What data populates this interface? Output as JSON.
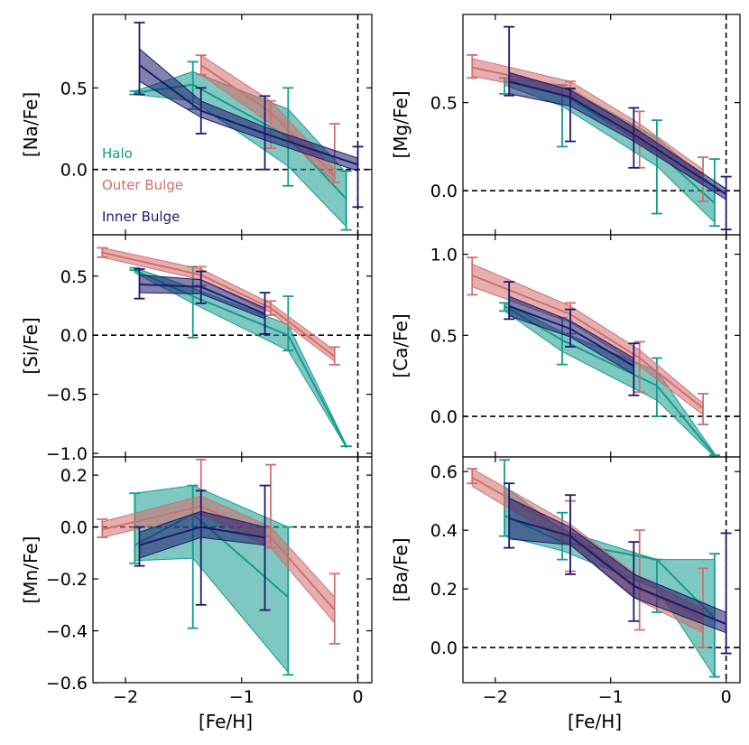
{
  "chart_data": {
    "type": "line",
    "figure_xlabel": "[Fe/H]",
    "colors": {
      "Halo": "#159b8e",
      "Outer Bulge": "#d16e6e",
      "Inner Bulge": "#1b1b6e"
    },
    "legend": [
      {
        "name": "Halo",
        "color": "#159b8e"
      },
      {
        "name": "Outer Bulge",
        "color": "#d16e6e"
      },
      {
        "name": "Inner Bulge",
        "color": "#1b1b6e"
      }
    ],
    "xlim": [
      -2.28,
      0.12
    ],
    "xticks": [
      -2,
      -1,
      0
    ],
    "xtick_labels": [
      "−2",
      "−1",
      "0"
    ],
    "panels": [
      {
        "id": "na",
        "ylabel": "[Na/Fe]",
        "ylim": [
          -0.4,
          0.95
        ],
        "yticks": [
          0.0,
          0.5
        ],
        "ytick_labels": [
          "0.0",
          "0.5"
        ],
        "show_legend": true,
        "show_xticklabels": false,
        "series": [
          {
            "name": "Halo",
            "x": [
              -1.92,
              -1.42,
              -0.6,
              -0.1
            ],
            "y": [
              0.47,
              0.52,
              0.2,
              -0.18
            ],
            "lo": [
              0.46,
              0.42,
              0.02,
              -0.35
            ],
            "hi": [
              0.48,
              0.6,
              0.37,
              -0.02
            ],
            "err_lo": [
              0.46,
              0.37,
              -0.1,
              -0.37
            ],
            "err_hi": [
              0.48,
              0.66,
              0.5,
              -0.01
            ]
          },
          {
            "name": "Outer Bulge",
            "x": [
              -1.35,
              -0.75,
              -0.2
            ],
            "y": [
              0.64,
              0.35,
              -0.04
            ],
            "lo": [
              0.58,
              0.28,
              -0.08
            ],
            "hi": [
              0.7,
              0.42,
              0.0
            ],
            "err_lo": [
              0.58,
              0.13,
              -0.08
            ],
            "err_hi": [
              0.7,
              0.42,
              0.28
            ]
          },
          {
            "name": "Inner Bulge",
            "x": [
              -1.88,
              -1.35,
              -0.8,
              0.0
            ],
            "y": [
              0.64,
              0.36,
              0.22,
              0.03
            ],
            "lo": [
              0.54,
              0.32,
              0.18,
              -0.01
            ],
            "hi": [
              0.74,
              0.42,
              0.26,
              0.07
            ],
            "err_lo": [
              0.46,
              0.22,
              0.0,
              -0.23
            ],
            "err_hi": [
              0.9,
              0.5,
              0.45,
              0.14
            ]
          }
        ]
      },
      {
        "id": "mg",
        "ylabel": "[Mg/Fe]",
        "ylim": [
          -0.25,
          1.0
        ],
        "yticks": [
          0.0,
          0.5
        ],
        "ytick_labels": [
          "0.0",
          "0.5"
        ],
        "show_legend": false,
        "show_xticklabels": false,
        "series": [
          {
            "name": "Halo",
            "x": [
              -1.92,
              -1.42,
              -0.6,
              -0.1
            ],
            "y": [
              0.62,
              0.55,
              0.22,
              -0.07
            ],
            "lo": [
              0.6,
              0.48,
              0.14,
              -0.18
            ],
            "hi": [
              0.64,
              0.6,
              0.3,
              0.02
            ],
            "err_lo": [
              0.55,
              0.25,
              -0.13,
              -0.2
            ],
            "err_hi": [
              0.64,
              0.6,
              0.4,
              0.18
            ]
          },
          {
            "name": "Outer Bulge",
            "x": [
              -2.2,
              -1.35,
              -0.75,
              -0.2
            ],
            "y": [
              0.7,
              0.58,
              0.33,
              0.09
            ],
            "lo": [
              0.65,
              0.54,
              0.27,
              0.04
            ],
            "hi": [
              0.75,
              0.62,
              0.38,
              0.12
            ],
            "err_lo": [
              0.64,
              0.53,
              0.13,
              -0.06
            ],
            "err_hi": [
              0.77,
              0.62,
              0.45,
              0.19
            ]
          },
          {
            "name": "Inner Bulge",
            "x": [
              -1.88,
              -1.35,
              -0.8,
              0.0
            ],
            "y": [
              0.62,
              0.53,
              0.32,
              -0.02
            ],
            "lo": [
              0.55,
              0.48,
              0.28,
              -0.05
            ],
            "hi": [
              0.67,
              0.57,
              0.36,
              0.01
            ],
            "err_lo": [
              0.54,
              0.28,
              0.13,
              -0.22
            ],
            "err_hi": [
              0.93,
              0.58,
              0.47,
              0.08
            ]
          }
        ]
      },
      {
        "id": "si",
        "ylabel": "[Si/Fe]",
        "ylim": [
          -1.03,
          0.85
        ],
        "yticks": [
          -1.0,
          -0.5,
          0.0,
          0.5
        ],
        "ytick_labels": [
          "−1.0",
          "−0.5",
          "0.0",
          "0.5"
        ],
        "show_legend": false,
        "show_xticklabels": false,
        "series": [
          {
            "name": "Halo",
            "x": [
              -1.92,
              -1.42,
              -0.6,
              -0.1
            ],
            "y": [
              0.55,
              0.33,
              0.0,
              -0.94
            ],
            "lo": [
              0.53,
              0.27,
              -0.13,
              -0.95
            ],
            "hi": [
              0.57,
              0.4,
              0.09,
              -0.93
            ],
            "err_lo": [
              0.55,
              -0.02,
              -0.13,
              -0.94
            ],
            "err_hi": [
              0.57,
              0.58,
              0.33,
              -0.94
            ]
          },
          {
            "name": "Outer Bulge",
            "x": [
              -2.2,
              -1.35,
              -0.75,
              -0.2
            ],
            "y": [
              0.7,
              0.51,
              0.23,
              -0.18
            ],
            "lo": [
              0.66,
              0.47,
              0.19,
              -0.22
            ],
            "hi": [
              0.74,
              0.56,
              0.27,
              -0.13
            ],
            "err_lo": [
              0.66,
              0.42,
              0.17,
              -0.25
            ],
            "err_hi": [
              0.74,
              0.58,
              0.29,
              -0.1
            ]
          },
          {
            "name": "Inner Bulge",
            "x": [
              -1.88,
              -1.35,
              -0.8
            ],
            "y": [
              0.43,
              0.41,
              0.18
            ],
            "lo": [
              0.36,
              0.35,
              0.14
            ],
            "hi": [
              0.51,
              0.47,
              0.23
            ],
            "err_lo": [
              0.31,
              0.27,
              0.01
            ],
            "err_hi": [
              0.56,
              0.54,
              0.36
            ]
          }
        ]
      },
      {
        "id": "ca",
        "ylabel": "[Ca/Fe]",
        "ylim": [
          -0.25,
          1.12
        ],
        "yticks": [
          0.0,
          0.5,
          1.0
        ],
        "ytick_labels": [
          "0.0",
          "0.5",
          "1.0"
        ],
        "show_legend": false,
        "show_xticklabels": false,
        "series": [
          {
            "name": "Halo",
            "x": [
              -1.92,
              -1.42,
              -0.6,
              -0.1
            ],
            "y": [
              0.68,
              0.47,
              0.19,
              -0.24
            ],
            "lo": [
              0.65,
              0.4,
              0.1,
              -0.25
            ],
            "hi": [
              0.7,
              0.52,
              0.28,
              -0.23
            ],
            "err_lo": [
              0.65,
              0.32,
              0.0,
              -0.24
            ],
            "err_hi": [
              0.7,
              0.61,
              0.36,
              -0.24
            ]
          },
          {
            "name": "Outer Bulge",
            "x": [
              -2.2,
              -1.35,
              -0.75,
              -0.2
            ],
            "y": [
              0.87,
              0.63,
              0.36,
              0.05
            ],
            "lo": [
              0.8,
              0.58,
              0.31,
              0.01
            ],
            "hi": [
              0.94,
              0.68,
              0.41,
              0.08
            ],
            "err_lo": [
              0.75,
              0.51,
              0.15,
              -0.05
            ],
            "err_hi": [
              0.98,
              0.7,
              0.46,
              0.14
            ]
          },
          {
            "name": "Inner Bulge",
            "x": [
              -1.88,
              -1.35,
              -0.8
            ],
            "y": [
              0.68,
              0.54,
              0.31
            ],
            "lo": [
              0.62,
              0.49,
              0.26
            ],
            "hi": [
              0.74,
              0.59,
              0.36
            ],
            "err_lo": [
              0.6,
              0.43,
              0.13
            ],
            "err_hi": [
              0.83,
              0.66,
              0.45
            ]
          }
        ]
      },
      {
        "id": "mn",
        "ylabel": "[Mn/Fe]",
        "ylim": [
          -0.6,
          0.27
        ],
        "yticks": [
          -0.6,
          -0.4,
          -0.2,
          0.0,
          0.2
        ],
        "ytick_labels": [
          "−0.6",
          "−0.4",
          "−0.2",
          "0.0",
          "0.2"
        ],
        "show_legend": false,
        "show_xticklabels": true,
        "series": [
          {
            "name": "Halo",
            "x": [
              -1.92,
              -1.42,
              -0.6
            ],
            "y": [
              -0.07,
              0.05,
              -0.27
            ],
            "lo": [
              -0.13,
              -0.12,
              -0.56
            ],
            "hi": [
              0.13,
              0.16,
              0.0
            ],
            "err_lo": [
              -0.14,
              -0.39,
              -0.57
            ],
            "err_hi": [
              0.13,
              0.16,
              0.0
            ]
          },
          {
            "name": "Outer Bulge",
            "x": [
              -2.2,
              -1.35,
              -0.75,
              -0.2
            ],
            "y": [
              -0.01,
              0.08,
              -0.04,
              -0.32
            ],
            "lo": [
              -0.04,
              0.05,
              -0.08,
              -0.37
            ],
            "hi": [
              0.02,
              0.12,
              0.0,
              -0.27
            ],
            "err_lo": [
              -0.04,
              0.05,
              -0.08,
              -0.45
            ],
            "err_hi": [
              0.03,
              0.26,
              0.24,
              -0.18
            ]
          },
          {
            "name": "Inner Bulge",
            "x": [
              -1.88,
              -1.35,
              -0.8
            ],
            "y": [
              -0.07,
              0.0,
              -0.04
            ],
            "lo": [
              -0.12,
              -0.04,
              -0.07
            ],
            "hi": [
              -0.02,
              0.06,
              0.0
            ],
            "err_lo": [
              -0.15,
              -0.3,
              -0.32
            ],
            "err_hi": [
              0.0,
              0.14,
              0.16
            ]
          }
        ]
      },
      {
        "id": "ba",
        "ylabel": "[Ba/Fe]",
        "ylim": [
          -0.12,
          0.65
        ],
        "yticks": [
          0.0,
          0.2,
          0.4,
          0.6
        ],
        "ytick_labels": [
          "0.0",
          "0.2",
          "0.4",
          "0.6"
        ],
        "show_legend": false,
        "show_xticklabels": true,
        "series": [
          {
            "name": "Halo",
            "x": [
              -1.92,
              -1.42,
              -0.6,
              -0.1
            ],
            "y": [
              0.45,
              0.36,
              0.3,
              0.1
            ],
            "lo": [
              0.38,
              0.33,
              0.2,
              -0.1
            ],
            "hi": [
              0.55,
              0.4,
              0.3,
              0.3
            ],
            "err_lo": [
              0.38,
              0.3,
              0.12,
              -0.1
            ],
            "err_hi": [
              0.64,
              0.46,
              0.3,
              0.32
            ]
          },
          {
            "name": "Outer Bulge",
            "x": [
              -2.2,
              -1.35,
              -0.75,
              -0.2
            ],
            "y": [
              0.58,
              0.39,
              0.2,
              0.1
            ],
            "lo": [
              0.55,
              0.35,
              0.16,
              0.05
            ],
            "hi": [
              0.61,
              0.42,
              0.24,
              0.13
            ],
            "err_lo": [
              0.56,
              0.26,
              0.06,
              0.0
            ],
            "err_hi": [
              0.61,
              0.5,
              0.4,
              0.27
            ]
          },
          {
            "name": "Inner Bulge",
            "x": [
              -1.88,
              -1.35,
              -0.8,
              0.0
            ],
            "y": [
              0.44,
              0.38,
              0.21,
              0.08
            ],
            "lo": [
              0.37,
              0.35,
              0.17,
              0.05
            ],
            "hi": [
              0.51,
              0.41,
              0.25,
              0.12
            ],
            "err_lo": [
              0.34,
              0.25,
              0.09,
              -0.02
            ],
            "err_hi": [
              0.56,
              0.52,
              0.36,
              0.39
            ]
          }
        ]
      }
    ]
  }
}
